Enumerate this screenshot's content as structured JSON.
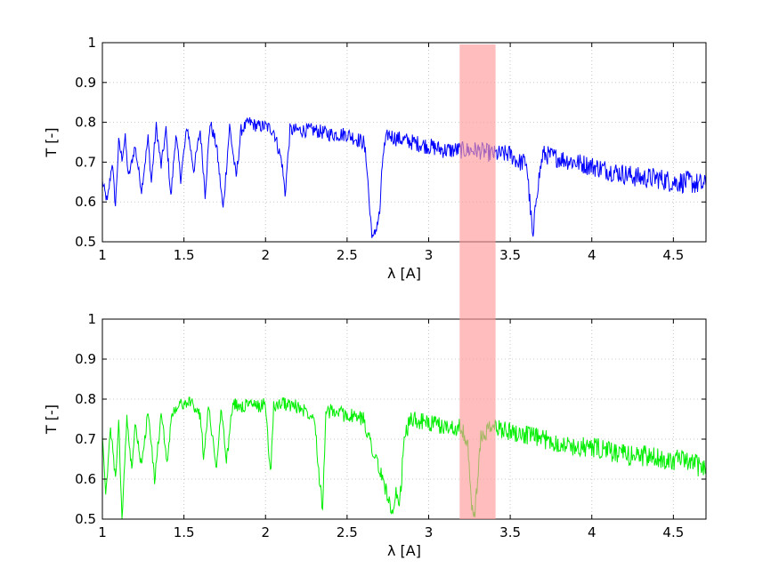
{
  "chart_data": [
    {
      "type": "line",
      "title": "",
      "xlabel": "λ [A]",
      "ylabel": "T [-]",
      "xlim": [
        1,
        4.7
      ],
      "ylim": [
        0.5,
        1
      ],
      "xticks": [
        1,
        1.5,
        2,
        2.5,
        3,
        3.5,
        4,
        4.5
      ],
      "yticks": [
        0.5,
        0.6,
        0.7,
        0.8,
        0.9,
        1
      ],
      "grid": true,
      "legend": "none",
      "color": "#0000ff",
      "highlight_band": {
        "x": [
          3.19,
          3.41
        ],
        "color": "#ff9a9a"
      },
      "series": [
        {
          "x": [
            1.0,
            1.03,
            1.06,
            1.08,
            1.1,
            1.12,
            1.14,
            1.16,
            1.2,
            1.24,
            1.28,
            1.3,
            1.33,
            1.36,
            1.39,
            1.42,
            1.45,
            1.48,
            1.52,
            1.56,
            1.6,
            1.63,
            1.66,
            1.7,
            1.74,
            1.78,
            1.82,
            1.85,
            1.9,
            1.95,
            2.0,
            2.05,
            2.1,
            2.12,
            2.15,
            2.2,
            2.3,
            2.4,
            2.5,
            2.55,
            2.6,
            2.62,
            2.64,
            2.66,
            2.68,
            2.7,
            2.72,
            2.75,
            2.8,
            2.9,
            3.0,
            3.1,
            3.2,
            3.3,
            3.4,
            3.5,
            3.55,
            3.6,
            3.62,
            3.64,
            3.66,
            3.7,
            3.8,
            3.9,
            4.0,
            4.1,
            4.2,
            4.3,
            4.4,
            4.5,
            4.6,
            4.7
          ],
          "y": [
            0.65,
            0.6,
            0.7,
            0.59,
            0.75,
            0.71,
            0.76,
            0.66,
            0.74,
            0.63,
            0.76,
            0.65,
            0.79,
            0.69,
            0.78,
            0.61,
            0.77,
            0.66,
            0.79,
            0.68,
            0.78,
            0.62,
            0.8,
            0.74,
            0.58,
            0.79,
            0.66,
            0.78,
            0.8,
            0.79,
            0.79,
            0.78,
            0.7,
            0.62,
            0.78,
            0.78,
            0.78,
            0.77,
            0.77,
            0.76,
            0.75,
            0.7,
            0.57,
            0.5,
            0.54,
            0.57,
            0.72,
            0.77,
            0.76,
            0.75,
            0.74,
            0.73,
            0.73,
            0.73,
            0.72,
            0.72,
            0.7,
            0.7,
            0.6,
            0.5,
            0.62,
            0.72,
            0.71,
            0.7,
            0.69,
            0.68,
            0.67,
            0.66,
            0.66,
            0.65,
            0.65,
            0.64
          ]
        }
      ]
    },
    {
      "type": "line",
      "title": "",
      "xlabel": "λ [A]",
      "ylabel": "T [-]",
      "xlim": [
        1,
        4.7
      ],
      "ylim": [
        0.5,
        1
      ],
      "xticks": [
        1,
        1.5,
        2,
        2.5,
        3,
        3.5,
        4,
        4.5
      ],
      "yticks": [
        0.5,
        0.6,
        0.7,
        0.8,
        0.9,
        1
      ],
      "grid": true,
      "legend": "none",
      "color": "#00ee00",
      "highlight_band": {
        "x": [
          3.19,
          3.41
        ],
        "color": "#ff9a9a"
      },
      "series": [
        {
          "x": [
            1.0,
            1.02,
            1.05,
            1.08,
            1.1,
            1.12,
            1.15,
            1.18,
            1.2,
            1.24,
            1.28,
            1.32,
            1.36,
            1.4,
            1.42,
            1.45,
            1.5,
            1.55,
            1.6,
            1.62,
            1.65,
            1.7,
            1.73,
            1.76,
            1.8,
            1.85,
            1.9,
            1.95,
            2.0,
            2.03,
            2.05,
            2.1,
            2.2,
            2.3,
            2.33,
            2.35,
            2.37,
            2.4,
            2.5,
            2.6,
            2.7,
            2.75,
            2.78,
            2.8,
            2.82,
            2.85,
            2.88,
            2.9,
            3.0,
            3.1,
            3.2,
            3.24,
            3.26,
            3.28,
            3.3,
            3.32,
            3.36,
            3.4,
            3.5,
            3.6,
            3.7,
            3.8,
            3.9,
            4.0,
            4.1,
            4.2,
            4.3,
            4.4,
            4.5,
            4.6,
            4.7
          ],
          "y": [
            0.72,
            0.55,
            0.73,
            0.6,
            0.74,
            0.5,
            0.75,
            0.62,
            0.74,
            0.63,
            0.77,
            0.6,
            0.76,
            0.64,
            0.75,
            0.78,
            0.79,
            0.79,
            0.76,
            0.66,
            0.78,
            0.63,
            0.78,
            0.64,
            0.79,
            0.78,
            0.79,
            0.78,
            0.79,
            0.61,
            0.78,
            0.79,
            0.78,
            0.76,
            0.6,
            0.53,
            0.76,
            0.77,
            0.76,
            0.75,
            0.62,
            0.56,
            0.5,
            0.56,
            0.52,
            0.7,
            0.74,
            0.75,
            0.74,
            0.73,
            0.73,
            0.68,
            0.55,
            0.5,
            0.6,
            0.7,
            0.72,
            0.73,
            0.72,
            0.71,
            0.7,
            0.69,
            0.68,
            0.68,
            0.67,
            0.66,
            0.66,
            0.65,
            0.65,
            0.64,
            0.63
          ]
        }
      ]
    }
  ]
}
